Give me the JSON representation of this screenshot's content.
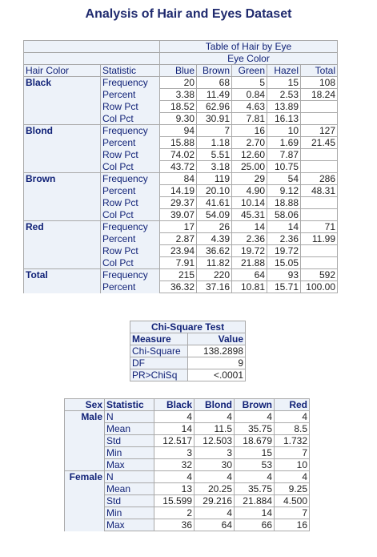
{
  "title": "Analysis of Hair and Eyes Dataset",
  "crosstab": {
    "caption": "Table of Hair by Eye",
    "col_group": "Eye Color",
    "row_header": "Hair Color",
    "stat_header": "Statistic",
    "columns": [
      "Blue",
      "Brown",
      "Green",
      "Hazel",
      "Total"
    ],
    "groups": [
      {
        "name": "Black",
        "rows": [
          {
            "stat": "Frequency",
            "v": [
              "20",
              "68",
              "5",
              "15",
              "108"
            ]
          },
          {
            "stat": "Percent",
            "v": [
              "3.38",
              "11.49",
              "0.84",
              "2.53",
              "18.24"
            ]
          },
          {
            "stat": "Row Pct",
            "v": [
              "18.52",
              "62.96",
              "4.63",
              "13.89",
              ""
            ]
          },
          {
            "stat": "Col Pct",
            "v": [
              "9.30",
              "30.91",
              "7.81",
              "16.13",
              ""
            ]
          }
        ]
      },
      {
        "name": "Blond",
        "rows": [
          {
            "stat": "Frequency",
            "v": [
              "94",
              "7",
              "16",
              "10",
              "127"
            ]
          },
          {
            "stat": "Percent",
            "v": [
              "15.88",
              "1.18",
              "2.70",
              "1.69",
              "21.45"
            ]
          },
          {
            "stat": "Row Pct",
            "v": [
              "74.02",
              "5.51",
              "12.60",
              "7.87",
              ""
            ]
          },
          {
            "stat": "Col Pct",
            "v": [
              "43.72",
              "3.18",
              "25.00",
              "10.75",
              ""
            ]
          }
        ]
      },
      {
        "name": "Brown",
        "rows": [
          {
            "stat": "Frequency",
            "v": [
              "84",
              "119",
              "29",
              "54",
              "286"
            ]
          },
          {
            "stat": "Percent",
            "v": [
              "14.19",
              "20.10",
              "4.90",
              "9.12",
              "48.31"
            ]
          },
          {
            "stat": "Row Pct",
            "v": [
              "29.37",
              "41.61",
              "10.14",
              "18.88",
              ""
            ]
          },
          {
            "stat": "Col Pct",
            "v": [
              "39.07",
              "54.09",
              "45.31",
              "58.06",
              ""
            ]
          }
        ]
      },
      {
        "name": "Red",
        "rows": [
          {
            "stat": "Frequency",
            "v": [
              "17",
              "26",
              "14",
              "14",
              "71"
            ]
          },
          {
            "stat": "Percent",
            "v": [
              "2.87",
              "4.39",
              "2.36",
              "2.36",
              "11.99"
            ]
          },
          {
            "stat": "Row Pct",
            "v": [
              "23.94",
              "36.62",
              "19.72",
              "19.72",
              ""
            ]
          },
          {
            "stat": "Col Pct",
            "v": [
              "7.91",
              "11.82",
              "21.88",
              "15.05",
              ""
            ]
          }
        ]
      },
      {
        "name": "Total",
        "rows": [
          {
            "stat": "Frequency",
            "v": [
              "215",
              "220",
              "64",
              "93",
              "592"
            ]
          },
          {
            "stat": "Percent",
            "v": [
              "36.32",
              "37.16",
              "10.81",
              "15.71",
              "100.00"
            ]
          }
        ]
      }
    ]
  },
  "chisq": {
    "caption": "Chi-Square Test",
    "headers": [
      "Measure",
      "Value"
    ],
    "rows": [
      {
        "label": "Chi-Square",
        "value": "138.2898"
      },
      {
        "label": "DF",
        "value": "9"
      },
      {
        "label": "PR>ChiSq",
        "value": "<.0001"
      }
    ]
  },
  "stats": {
    "headers": [
      "Sex",
      "Statistic",
      "Black",
      "Blond",
      "Brown",
      "Red"
    ],
    "groups": [
      {
        "name": "Male",
        "rows": [
          {
            "stat": "N",
            "v": [
              "4",
              "4",
              "4",
              "4"
            ]
          },
          {
            "stat": "Mean",
            "v": [
              "14",
              "11.5",
              "35.75",
              "8.5"
            ]
          },
          {
            "stat": "Std",
            "v": [
              "12.517",
              "12.503",
              "18.679",
              "1.732"
            ]
          },
          {
            "stat": "Min",
            "v": [
              "3",
              "3",
              "15",
              "7"
            ]
          },
          {
            "stat": "Max",
            "v": [
              "32",
              "30",
              "53",
              "10"
            ]
          }
        ]
      },
      {
        "name": "Female",
        "rows": [
          {
            "stat": "N",
            "v": [
              "4",
              "4",
              "4",
              "4"
            ]
          },
          {
            "stat": "Mean",
            "v": [
              "13",
              "20.25",
              "35.75",
              "9.25"
            ]
          },
          {
            "stat": "Std",
            "v": [
              "15.599",
              "29.216",
              "21.884",
              "4.500"
            ]
          },
          {
            "stat": "Min",
            "v": [
              "2",
              "4",
              "14",
              "7"
            ]
          },
          {
            "stat": "Max",
            "v": [
              "36",
              "64",
              "66",
              "16"
            ]
          }
        ]
      }
    ]
  }
}
